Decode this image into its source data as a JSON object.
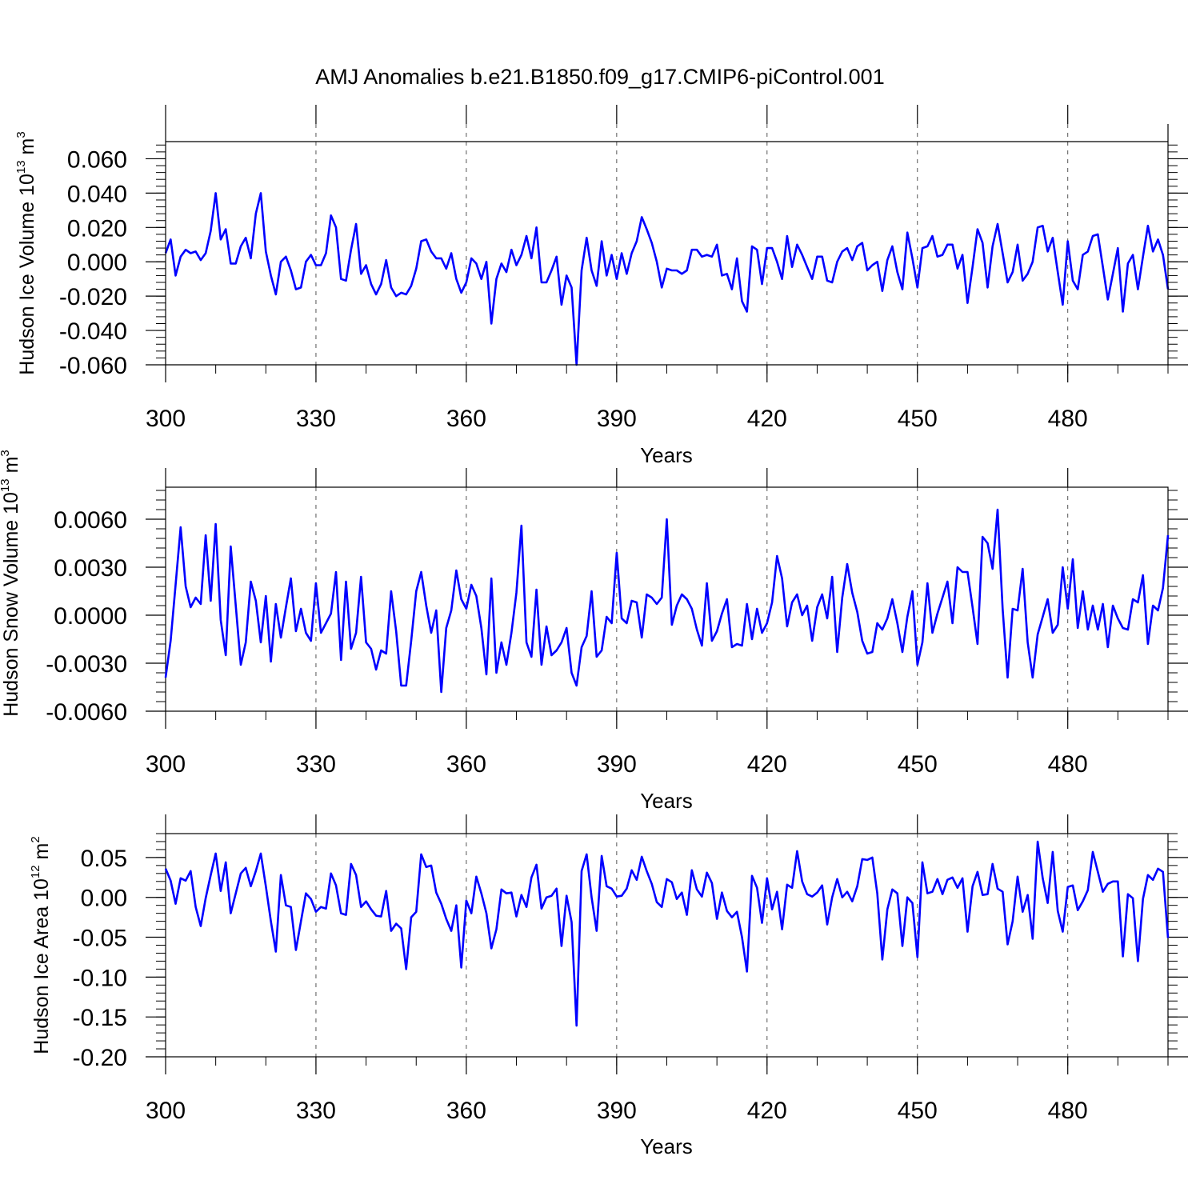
{
  "figure_title": "AMJ Anomalies b.e21.B1850.f09_g17.CMIP6-piControl.001",
  "colors": {
    "line": "#0000ff",
    "axis": "#000000",
    "grid": "#555555"
  },
  "chart_data": [
    {
      "type": "line",
      "title": "AMJ Anomalies b.e21.B1850.f09_g17.CMIP6-piControl.001",
      "xlabel": "Years",
      "ylabel": {
        "main": "Hudson Ice Volume 10",
        "exp": "13",
        "unit": " m",
        "unit_exp": "3"
      },
      "xlim": [
        300,
        500
      ],
      "ylim": [
        -0.06,
        0.07
      ],
      "xticks": [
        "300",
        "330",
        "360",
        "390",
        "420",
        "450",
        "480"
      ],
      "yticks": [
        "0.060",
        "0.040",
        "0.020",
        "0.000",
        "-0.020",
        "-0.040",
        "-0.060"
      ],
      "ytick_values": [
        0.06,
        0.04,
        0.02,
        0.0,
        -0.02,
        -0.04,
        -0.06
      ],
      "x_start": 300,
      "series": [
        {
          "name": "Hudson Ice Volume",
          "values": [
            0.005,
            0.013,
            -0.008,
            0.003,
            0.007,
            0.005,
            0.006,
            0.001,
            0.005,
            0.018,
            0.04,
            0.013,
            0.019,
            -0.001,
            -0.001,
            0.009,
            0.014,
            0.002,
            0.028,
            0.04,
            0.006,
            -0.008,
            -0.019,
            0.0,
            0.003,
            -0.005,
            -0.016,
            -0.015,
            0.0,
            0.004,
            -0.002,
            -0.002,
            0.005,
            0.027,
            0.02,
            -0.01,
            -0.011,
            0.007,
            0.022,
            -0.007,
            -0.002,
            -0.013,
            -0.019,
            -0.013,
            0.001,
            -0.015,
            -0.02,
            -0.018,
            -0.019,
            -0.014,
            -0.004,
            0.012,
            0.013,
            0.006,
            0.002,
            0.002,
            -0.004,
            0.005,
            -0.01,
            -0.018,
            -0.012,
            0.002,
            -0.001,
            -0.01,
            0.0,
            -0.036,
            -0.01,
            -0.001,
            -0.006,
            0.007,
            -0.002,
            0.004,
            0.015,
            0.002,
            0.02,
            -0.012,
            -0.012,
            -0.005,
            0.003,
            -0.025,
            -0.008,
            -0.015,
            -0.06,
            -0.005,
            0.014,
            -0.005,
            -0.014,
            0.012,
            -0.008,
            0.004,
            -0.01,
            0.005,
            -0.007,
            0.005,
            0.012,
            0.026,
            0.019,
            0.011,
            0.0,
            -0.015,
            -0.004,
            -0.005,
            -0.005,
            -0.007,
            -0.005,
            0.007,
            0.007,
            0.003,
            0.004,
            0.003,
            0.01,
            -0.008,
            -0.007,
            -0.016,
            0.002,
            -0.023,
            -0.029,
            0.009,
            0.007,
            -0.013,
            0.008,
            0.008,
            0.0,
            -0.01,
            0.015,
            -0.003,
            0.01,
            0.004,
            -0.003,
            -0.01,
            0.003,
            0.003,
            -0.011,
            -0.012,
            0.0,
            0.006,
            0.008,
            0.001,
            0.009,
            0.011,
            -0.005,
            -0.002,
            0.0,
            -0.017,
            0.001,
            0.009,
            -0.006,
            -0.016,
            0.017,
            0.002,
            -0.015,
            0.008,
            0.009,
            0.015,
            0.003,
            0.004,
            0.01,
            0.01,
            -0.004,
            0.004,
            -0.024,
            -0.003,
            0.019,
            0.011,
            -0.015,
            0.009,
            0.022,
            0.005,
            -0.012,
            -0.006,
            0.01,
            -0.011,
            -0.007,
            0.0,
            0.02,
            0.021,
            0.006,
            0.014,
            -0.006,
            -0.025,
            0.012,
            -0.011,
            -0.016,
            0.004,
            0.006,
            0.015,
            0.016,
            -0.003,
            -0.022,
            -0.007,
            0.008,
            -0.029,
            -0.001,
            0.004,
            -0.016,
            0.003,
            0.021,
            0.006,
            0.013,
            0.004,
            -0.016
          ]
        }
      ]
    },
    {
      "type": "line",
      "xlabel": "Years",
      "ylabel": {
        "main": "Hudson Snow Volume 10",
        "exp": "13",
        "unit": " m",
        "unit_exp": "3"
      },
      "xlim": [
        300,
        500
      ],
      "ylim": [
        -0.006,
        0.008
      ],
      "xticks": [
        "300",
        "330",
        "360",
        "390",
        "420",
        "450",
        "480"
      ],
      "yticks": [
        "0.0060",
        "0.0030",
        "0.0000",
        "-0.0030",
        "-0.0060"
      ],
      "ytick_values": [
        0.006,
        0.003,
        0.0,
        -0.003,
        -0.006
      ],
      "x_start": 300,
      "series": [
        {
          "name": "Hudson Snow Volume",
          "values": [
            -0.0039,
            -0.0016,
            0.0019,
            0.0055,
            0.0018,
            0.0005,
            0.0011,
            0.0007,
            0.005,
            0.0009,
            0.0057,
            -0.0003,
            -0.0025,
            0.0043,
            0.0006,
            -0.0031,
            -0.0017,
            0.0021,
            0.0009,
            -0.0017,
            0.0012,
            -0.0029,
            0.0007,
            -0.0014,
            0.0005,
            0.0023,
            -0.001,
            0.0004,
            -0.0011,
            -0.0016,
            0.002,
            -0.0011,
            -0.0005,
            0.0001,
            0.0027,
            -0.0028,
            0.0021,
            -0.0021,
            -0.0011,
            0.0024,
            -0.0017,
            -0.0021,
            -0.0034,
            -0.0022,
            -0.0024,
            0.0015,
            -0.001,
            -0.0044,
            -0.0044,
            -0.0016,
            0.0015,
            0.0027,
            0.0006,
            -0.0011,
            0.0003,
            -0.0048,
            -0.0008,
            0.0003,
            0.0028,
            0.001,
            0.0004,
            0.0019,
            0.0012,
            -0.0008,
            -0.0037,
            0.0023,
            -0.0036,
            -0.0017,
            -0.0031,
            -0.0011,
            0.0014,
            0.0056,
            -0.0017,
            -0.0026,
            0.0016,
            -0.0031,
            -0.0007,
            -0.0025,
            -0.0022,
            -0.0017,
            -0.0008,
            -0.0036,
            -0.0044,
            -0.002,
            -0.0013,
            0.0015,
            -0.0026,
            -0.0022,
            -0.0001,
            -0.0005,
            0.0039,
            -0.0002,
            -0.0005,
            0.0009,
            0.0008,
            -0.0014,
            0.0013,
            0.0011,
            0.0007,
            0.0011,
            0.006,
            -0.0006,
            0.0006,
            0.0013,
            0.001,
            0.0004,
            -0.0009,
            -0.0019,
            0.002,
            -0.0016,
            -0.001,
            0.0001,
            0.001,
            -0.002,
            -0.0018,
            -0.0019,
            0.0007,
            -0.0015,
            0.0004,
            -0.0011,
            -0.0005,
            0.0008,
            0.0037,
            0.0023,
            -0.0007,
            0.0008,
            0.0013,
            0.0,
            0.0006,
            -0.0016,
            0.0005,
            0.0013,
            -0.0002,
            0.0024,
            -0.0023,
            0.0011,
            0.0032,
            0.0014,
            0.0002,
            -0.0016,
            -0.0024,
            -0.0023,
            -0.0005,
            -0.0009,
            -0.0002,
            0.001,
            -0.0005,
            -0.0023,
            -0.0001,
            0.0015,
            -0.0031,
            -0.0017,
            0.002,
            -0.0011,
            0.0001,
            0.0011,
            0.0021,
            -0.0005,
            0.003,
            0.0027,
            0.0027,
            0.0005,
            -0.0018,
            0.0049,
            0.0045,
            0.0029,
            0.0066,
            0.0004,
            -0.0039,
            0.0004,
            0.0003,
            0.0029,
            -0.0017,
            -0.0039,
            -0.0012,
            -0.0001,
            0.001,
            -0.0011,
            -0.0006,
            0.003,
            0.0004,
            0.0035,
            -0.0008,
            0.0015,
            -0.0009,
            0.0006,
            -0.0009,
            0.0007,
            -0.002,
            0.0006,
            -0.0002,
            -0.0008,
            -0.0009,
            0.001,
            0.0008,
            0.0025,
            -0.0018,
            0.0006,
            0.0003,
            0.0017,
            0.005
          ]
        }
      ]
    },
    {
      "type": "line",
      "xlabel": "Years",
      "ylabel": {
        "main": "Hudson Ice Area 10",
        "exp": "12",
        "unit": " m",
        "unit_exp": "2"
      },
      "xlim": [
        300,
        500
      ],
      "ylim": [
        -0.2,
        0.08
      ],
      "xticks": [
        "300",
        "330",
        "360",
        "390",
        "420",
        "450",
        "480"
      ],
      "yticks": [
        "0.05",
        "0.00",
        "-0.05",
        "-0.10",
        "-0.15",
        "-0.20"
      ],
      "ytick_values": [
        0.05,
        0.0,
        -0.05,
        -0.1,
        -0.15,
        -0.2
      ],
      "x_start": 300,
      "series": [
        {
          "name": "Hudson Ice Area",
          "values": [
            0.036,
            0.021,
            -0.008,
            0.024,
            0.021,
            0.033,
            -0.012,
            -0.036,
            -0.001,
            0.028,
            0.055,
            0.008,
            0.044,
            -0.02,
            0.005,
            0.03,
            0.037,
            0.014,
            0.033,
            0.055,
            0.014,
            -0.03,
            -0.068,
            0.028,
            -0.01,
            -0.012,
            -0.066,
            -0.03,
            0.005,
            -0.002,
            -0.018,
            -0.012,
            -0.014,
            0.03,
            0.015,
            -0.02,
            -0.022,
            0.042,
            0.028,
            -0.012,
            -0.005,
            -0.015,
            -0.023,
            -0.024,
            0.008,
            -0.042,
            -0.033,
            -0.039,
            -0.09,
            -0.025,
            -0.018,
            0.054,
            0.038,
            0.04,
            0.006,
            -0.008,
            -0.027,
            -0.042,
            -0.01,
            -0.088,
            -0.004,
            -0.02,
            0.026,
            0.005,
            -0.02,
            -0.064,
            -0.04,
            0.01,
            0.005,
            0.006,
            -0.024,
            0.003,
            -0.012,
            0.025,
            0.041,
            -0.014,
            0.0,
            0.002,
            0.011,
            -0.061,
            0.002,
            -0.031,
            -0.161,
            0.033,
            0.054,
            0.0,
            -0.042,
            0.052,
            0.014,
            0.011,
            0.001,
            0.002,
            0.011,
            0.034,
            0.022,
            0.051,
            0.033,
            0.017,
            -0.006,
            -0.012,
            0.023,
            0.019,
            -0.002,
            0.006,
            -0.022,
            0.034,
            0.01,
            0.001,
            0.031,
            0.018,
            -0.027,
            0.006,
            -0.017,
            -0.025,
            -0.018,
            -0.05,
            -0.093,
            0.027,
            0.012,
            -0.032,
            0.024,
            -0.015,
            0.007,
            -0.04,
            0.016,
            0.012,
            0.058,
            0.02,
            0.004,
            0.001,
            0.006,
            0.015,
            -0.034,
            0.0,
            0.023,
            0.0,
            0.007,
            -0.005,
            0.014,
            0.048,
            0.047,
            0.05,
            0.005,
            -0.078,
            -0.015,
            0.01,
            0.005,
            -0.061,
            0.0,
            -0.007,
            -0.075,
            0.044,
            0.005,
            0.007,
            0.023,
            0.004,
            0.022,
            0.025,
            0.012,
            0.024,
            -0.043,
            0.014,
            0.032,
            0.003,
            0.004,
            0.042,
            0.011,
            0.007,
            -0.059,
            -0.03,
            0.026,
            -0.018,
            0.003,
            -0.052,
            0.07,
            0.024,
            -0.007,
            0.057,
            -0.017,
            -0.043,
            0.013,
            0.015,
            -0.016,
            -0.005,
            0.009,
            0.057,
            0.032,
            0.007,
            0.017,
            0.02,
            0.02,
            -0.074,
            0.004,
            -0.001,
            -0.08,
            -0.002,
            0.028,
            0.022,
            0.036,
            0.032,
            -0.051
          ]
        }
      ]
    }
  ]
}
